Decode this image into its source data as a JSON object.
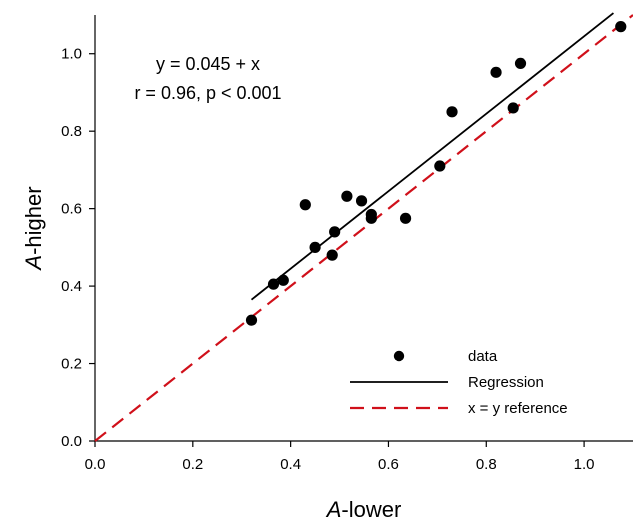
{
  "chart_data": {
    "type": "scatter",
    "title": "",
    "xlabel_italic": "A",
    "xlabel_rest": "-lower",
    "ylabel_italic": "A",
    "ylabel_rest": "-higher",
    "xlim": [
      0.0,
      1.1
    ],
    "ylim": [
      0.0,
      1.1
    ],
    "xticks": [
      0.0,
      0.2,
      0.4,
      0.6,
      0.8,
      1.0
    ],
    "yticks": [
      0.0,
      0.2,
      0.4,
      0.6,
      0.8,
      1.0
    ],
    "xtick_labels": [
      "0.0",
      "0.2",
      "0.4",
      "0.6",
      "0.8",
      "1.0"
    ],
    "ytick_labels": [
      "0.0",
      "0.2",
      "0.4",
      "0.6",
      "0.8",
      "1.0"
    ],
    "grid": false,
    "legend_position": "bottom-right",
    "series": [
      {
        "name": "data",
        "kind": "points",
        "color": "#000000",
        "x": [
          0.32,
          0.365,
          0.385,
          0.43,
          0.45,
          0.485,
          0.49,
          0.515,
          0.545,
          0.565,
          0.565,
          0.635,
          0.705,
          0.73,
          0.82,
          0.855,
          0.87,
          1.075
        ],
        "y": [
          0.312,
          0.405,
          0.415,
          0.61,
          0.5,
          0.48,
          0.54,
          0.632,
          0.62,
          0.585,
          0.575,
          0.575,
          0.71,
          0.85,
          0.952,
          0.86,
          0.975,
          1.07
        ]
      },
      {
        "name": "Regression",
        "kind": "line",
        "color": "#000000",
        "dash": "solid",
        "x": [
          0.32,
          1.06
        ],
        "y": [
          0.365,
          1.105
        ]
      },
      {
        "name": "x = y reference",
        "kind": "line",
        "color": "#d0101a",
        "dash": "dashed",
        "x": [
          0.0,
          1.1
        ],
        "y": [
          0.0,
          1.1
        ]
      }
    ],
    "annotations": [
      "y = 0.045 + x",
      "r = 0.96, p < 0.001"
    ]
  }
}
